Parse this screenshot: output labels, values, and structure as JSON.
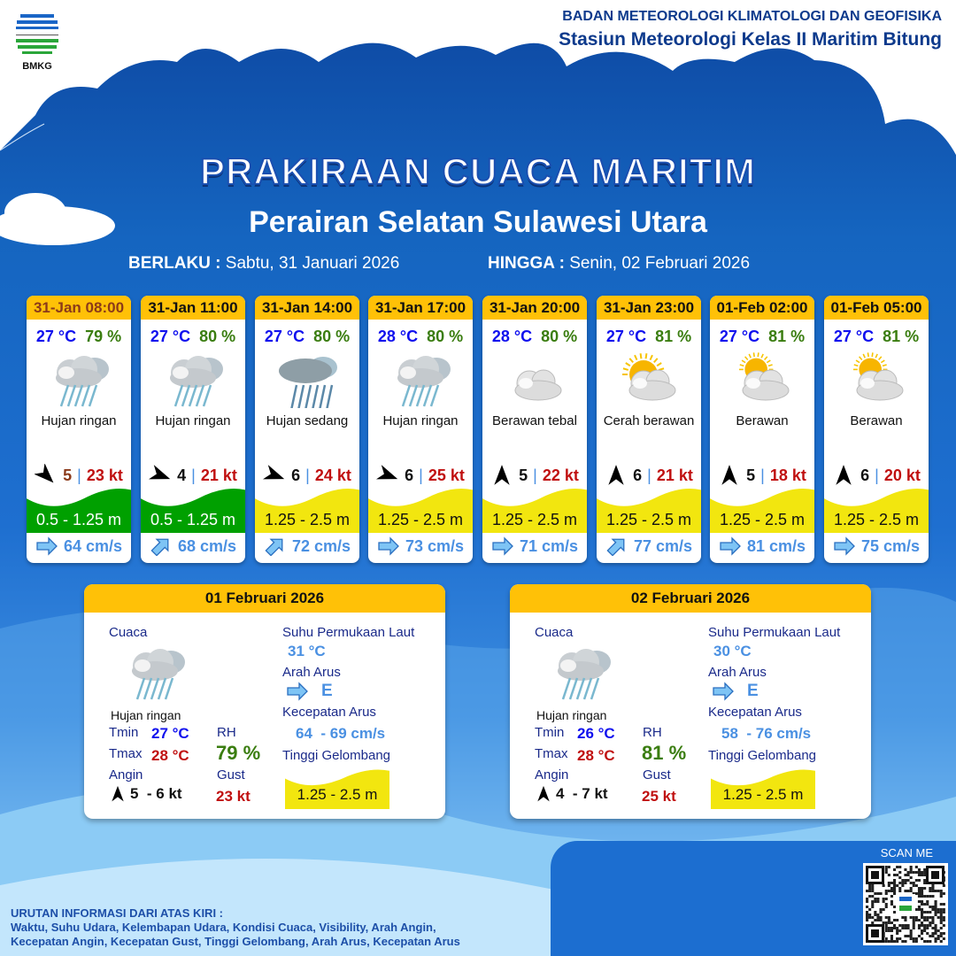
{
  "header": {
    "logo_text": "BMKG",
    "org_name": "BADAN METEOROLOGI KLIMATOLOGI DAN GEOFISIKA",
    "station": "Stasiun Meteorologi Kelas II Maritim Bitung",
    "title": "PRAKIRAAN CUACA MARITIM",
    "subtitle": "Perairan Selatan Sulawesi Utara",
    "valid_from_label": "BERLAKU :",
    "valid_from": "Sabtu, 31 Januari 2026",
    "valid_to_label": "HINGGA :",
    "valid_to": "Senin, 02 Februari 2026"
  },
  "colors": {
    "wave_low": "#00a000",
    "wave_moderate": "#f2e60f",
    "header_yellow": "#ffc107",
    "temp": "#1010ee",
    "humidity": "#3a7d10",
    "gust": "#c01010"
  },
  "forecasts": [
    {
      "time": "31-Jan 08:00",
      "temp": "27 °C",
      "rh": "79 %",
      "icon": "light-rain-icon",
      "condition": "Hujan ringan",
      "wind_bearing": 315,
      "wind_speed": "5",
      "gust": "23 kt",
      "wave": "0.5 - 1.25 m",
      "wave_level": "low",
      "current_dir": "E",
      "current_speed": "64 cm/s"
    },
    {
      "time": "31-Jan 11:00",
      "temp": "27 °C",
      "rh": "80 %",
      "icon": "light-rain-icon",
      "condition": "Hujan ringan",
      "wind_bearing": 290,
      "wind_speed": "4",
      "gust": "21 kt",
      "wave": "0.5 - 1.25 m",
      "wave_level": "low",
      "current_dir": "NE",
      "current_speed": "68 cm/s"
    },
    {
      "time": "31-Jan 14:00",
      "temp": "27 °C",
      "rh": "80 %",
      "icon": "moderate-rain-icon",
      "condition": "Hujan sedang",
      "wind_bearing": 290,
      "wind_speed": "6",
      "gust": "24 kt",
      "wave": "1.25 - 2.5 m",
      "wave_level": "moderate",
      "current_dir": "NE",
      "current_speed": "72 cm/s"
    },
    {
      "time": "31-Jan 17:00",
      "temp": "28 °C",
      "rh": "80 %",
      "icon": "light-rain-icon",
      "condition": "Hujan ringan",
      "wind_bearing": 290,
      "wind_speed": "6",
      "gust": "25 kt",
      "wave": "1.25 - 2.5 m",
      "wave_level": "moderate",
      "current_dir": "E",
      "current_speed": "73 cm/s"
    },
    {
      "time": "31-Jan 20:00",
      "temp": "28 °C",
      "rh": "80 %",
      "icon": "overcast-icon",
      "condition": "Berawan tebal",
      "wind_bearing": 180,
      "wind_speed": "5",
      "gust": "22 kt",
      "wave": "1.25 - 2.5 m",
      "wave_level": "moderate",
      "current_dir": "E",
      "current_speed": "71 cm/s"
    },
    {
      "time": "31-Jan 23:00",
      "temp": "27 °C",
      "rh": "81 %",
      "icon": "partly-sunny-icon",
      "condition": "Cerah berawan",
      "wind_bearing": 180,
      "wind_speed": "6",
      "gust": "21 kt",
      "wave": "1.25 - 2.5 m",
      "wave_level": "moderate",
      "current_dir": "NE",
      "current_speed": "77 cm/s"
    },
    {
      "time": "01-Feb 02:00",
      "temp": "27 °C",
      "rh": "81 %",
      "icon": "cloudy-icon",
      "condition": "Berawan",
      "wind_bearing": 180,
      "wind_speed": "5",
      "gust": "18 kt",
      "wave": "1.25 - 2.5 m",
      "wave_level": "moderate",
      "current_dir": "E",
      "current_speed": "81 cm/s"
    },
    {
      "time": "01-Feb 05:00",
      "temp": "27 °C",
      "rh": "81 %",
      "icon": "cloudy-icon",
      "condition": "Berawan",
      "wind_bearing": 180,
      "wind_speed": "6",
      "gust": "20 kt",
      "wave": "1.25 - 2.5 m",
      "wave_level": "moderate",
      "current_dir": "E",
      "current_speed": "75 cm/s"
    }
  ],
  "labels": {
    "weather": "Cuaca",
    "tmin": "Tmin",
    "tmax": "Tmax",
    "rh": "RH",
    "wind": "Angin",
    "gust": "Gust",
    "sst": "Suhu Permukaan Laut",
    "current_dir": "Arah Arus",
    "current_speed": "Kecepatan Arus",
    "wave": "Tinggi Gelombang"
  },
  "daily": [
    {
      "date": "01 Februari 2026",
      "condition": "Hujan ringan",
      "icon": "light-rain-icon",
      "tmin": "27 °C",
      "tmax": "28 °C",
      "rh": "79 %",
      "wind": "5  - 6 kt",
      "gust": "23 kt",
      "sst": "31 °C",
      "current_dir": "E",
      "current_speed": "64  - 69 cm/s",
      "wave": "1.25 - 2.5 m"
    },
    {
      "date": "02 Februari 2026",
      "condition": "Hujan ringan",
      "icon": "light-rain-icon",
      "tmin": "26 °C",
      "tmax": "28 °C",
      "rh": "81 %",
      "wind": "4  - 7 kt",
      "gust": "25 kt",
      "sst": "30 °C",
      "current_dir": "E",
      "current_speed": "58  - 76 cm/s",
      "wave": "1.25 - 2.5 m"
    }
  ],
  "footer": {
    "scan_label": "SCAN ME",
    "legend_title": "URUTAN INFORMASI DARI ATAS KIRI :",
    "legend_line1": "Waktu, Suhu Udara, Kelembapan Udara, Kondisi Cuaca, Visibility, Arah Angin,",
    "legend_line2": "Kecepatan Angin, Kecepatan Gust, Tinggi Gelombang, Arah Arus, Kecepatan Arus"
  }
}
